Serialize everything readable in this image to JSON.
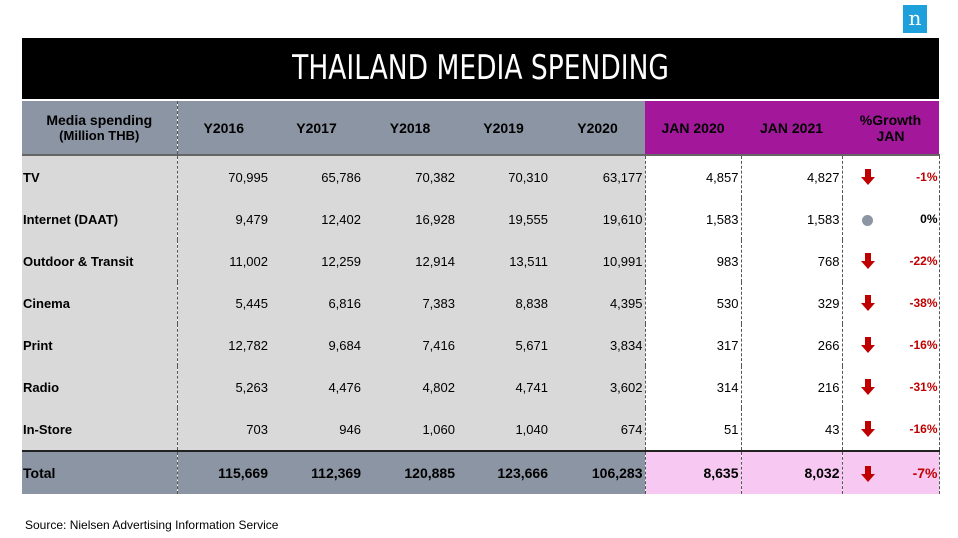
{
  "logo_text": "n",
  "title": "THAILAND MEDIA SPENDING",
  "chart_data": {
    "type": "table",
    "header": {
      "label_line1": "Media spending",
      "label_line2": "(Million THB)",
      "columns": [
        "Y2016",
        "Y2017",
        "Y2018",
        "Y2019",
        "Y2020",
        "JAN 2020",
        "JAN 2021"
      ],
      "growth_line1": "%Growth",
      "growth_line2": "JAN"
    },
    "rows": [
      {
        "media": "TV",
        "values": [
          "70,995",
          "65,786",
          "70,382",
          "70,310",
          "63,177",
          "4,857",
          "4,827"
        ],
        "trend": "down",
        "growth": "-1%"
      },
      {
        "media": "Internet (DAAT)",
        "values": [
          "9,479",
          "12,402",
          "16,928",
          "19,555",
          "19,610",
          "1,583",
          "1,583"
        ],
        "trend": "flat",
        "growth": "0%"
      },
      {
        "media": "Outdoor & Transit",
        "values": [
          "11,002",
          "12,259",
          "12,914",
          "13,511",
          "10,991",
          "983",
          "768"
        ],
        "trend": "down",
        "growth": "-22%"
      },
      {
        "media": "Cinema",
        "values": [
          "5,445",
          "6,816",
          "7,383",
          "8,838",
          "4,395",
          "530",
          "329"
        ],
        "trend": "down",
        "growth": "-38%"
      },
      {
        "media": "Print",
        "values": [
          "12,782",
          "9,684",
          "7,416",
          "5,671",
          "3,834",
          "317",
          "266"
        ],
        "trend": "down",
        "growth": "-16%"
      },
      {
        "media": "Radio",
        "values": [
          "5,263",
          "4,476",
          "4,802",
          "4,741",
          "3,602",
          "314",
          "216"
        ],
        "trend": "down",
        "growth": "-31%"
      },
      {
        "media": "In-Store",
        "values": [
          "703",
          "946",
          "1,060",
          "1,040",
          "674",
          "51",
          "43"
        ],
        "trend": "down",
        "growth": "-16%"
      }
    ],
    "total": {
      "media": "Total",
      "values": [
        "115,669",
        "112,369",
        "120,885",
        "123,666",
        "106,283",
        "8,635",
        "8,032"
      ],
      "trend": "down",
      "growth": "-7%"
    }
  },
  "colors": {
    "header_gray": "#8c95a3",
    "header_magenta": "#a3189b",
    "total_pink": "#f6c8f2",
    "negative_red": "#c00000",
    "body_gray": "#d9d9d9"
  },
  "source": "Source: Nielsen Advertising Information Service"
}
